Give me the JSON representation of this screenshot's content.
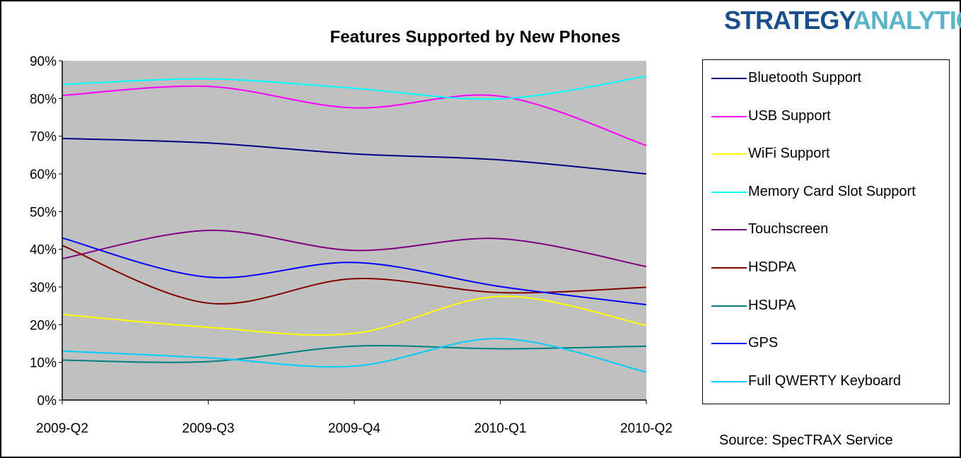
{
  "logo": {
    "part1": "STRATEGY",
    "part2": "ANALYTICS"
  },
  "source": "Source: SpecTRAX Service",
  "chart_data": {
    "type": "line",
    "title": "Features Supported by New Phones",
    "xlabel": "",
    "ylabel": "",
    "categories": [
      "2009-Q2",
      "2009-Q3",
      "2009-Q4",
      "2010-Q1",
      "2010-Q2"
    ],
    "y_ticks": [
      "0%",
      "10%",
      "20%",
      "30%",
      "40%",
      "50%",
      "60%",
      "70%",
      "80%",
      "90%"
    ],
    "ylim": [
      0,
      90
    ],
    "grid": false,
    "smooth": true,
    "legend_position": "right",
    "plot_background": "#c0c0c0",
    "series": [
      {
        "name": "Bluetooth Support",
        "color": "#000080",
        "values": [
          69.4,
          68.2,
          65.3,
          63.7,
          60.0
        ]
      },
      {
        "name": "USB Support",
        "color": "#ff00ff",
        "values": [
          80.8,
          83.2,
          77.5,
          80.6,
          67.5
        ]
      },
      {
        "name": "WiFi Support",
        "color": "#ffff00",
        "values": [
          22.7,
          19.3,
          17.7,
          27.5,
          19.8
        ]
      },
      {
        "name": "Memory Card Slot Support",
        "color": "#00ffff",
        "values": [
          83.7,
          85.2,
          82.7,
          79.9,
          85.9
        ]
      },
      {
        "name": "Touchscreen",
        "color": "#800080",
        "values": [
          37.5,
          45.0,
          39.7,
          42.8,
          35.4
        ]
      },
      {
        "name": "HSDPA",
        "color": "#800000",
        "values": [
          41.0,
          25.7,
          32.2,
          28.5,
          29.9
        ]
      },
      {
        "name": "HSUPA",
        "color": "#008080",
        "values": [
          10.6,
          10.2,
          14.3,
          13.6,
          14.3
        ]
      },
      {
        "name": "GPS",
        "color": "#0000ff",
        "values": [
          43.0,
          32.6,
          36.5,
          30.1,
          25.3
        ]
      },
      {
        "name": "Full QWERTY Keyboard",
        "color": "#00ccff",
        "values": [
          13.0,
          11.2,
          9.0,
          16.3,
          7.4
        ]
      }
    ]
  }
}
